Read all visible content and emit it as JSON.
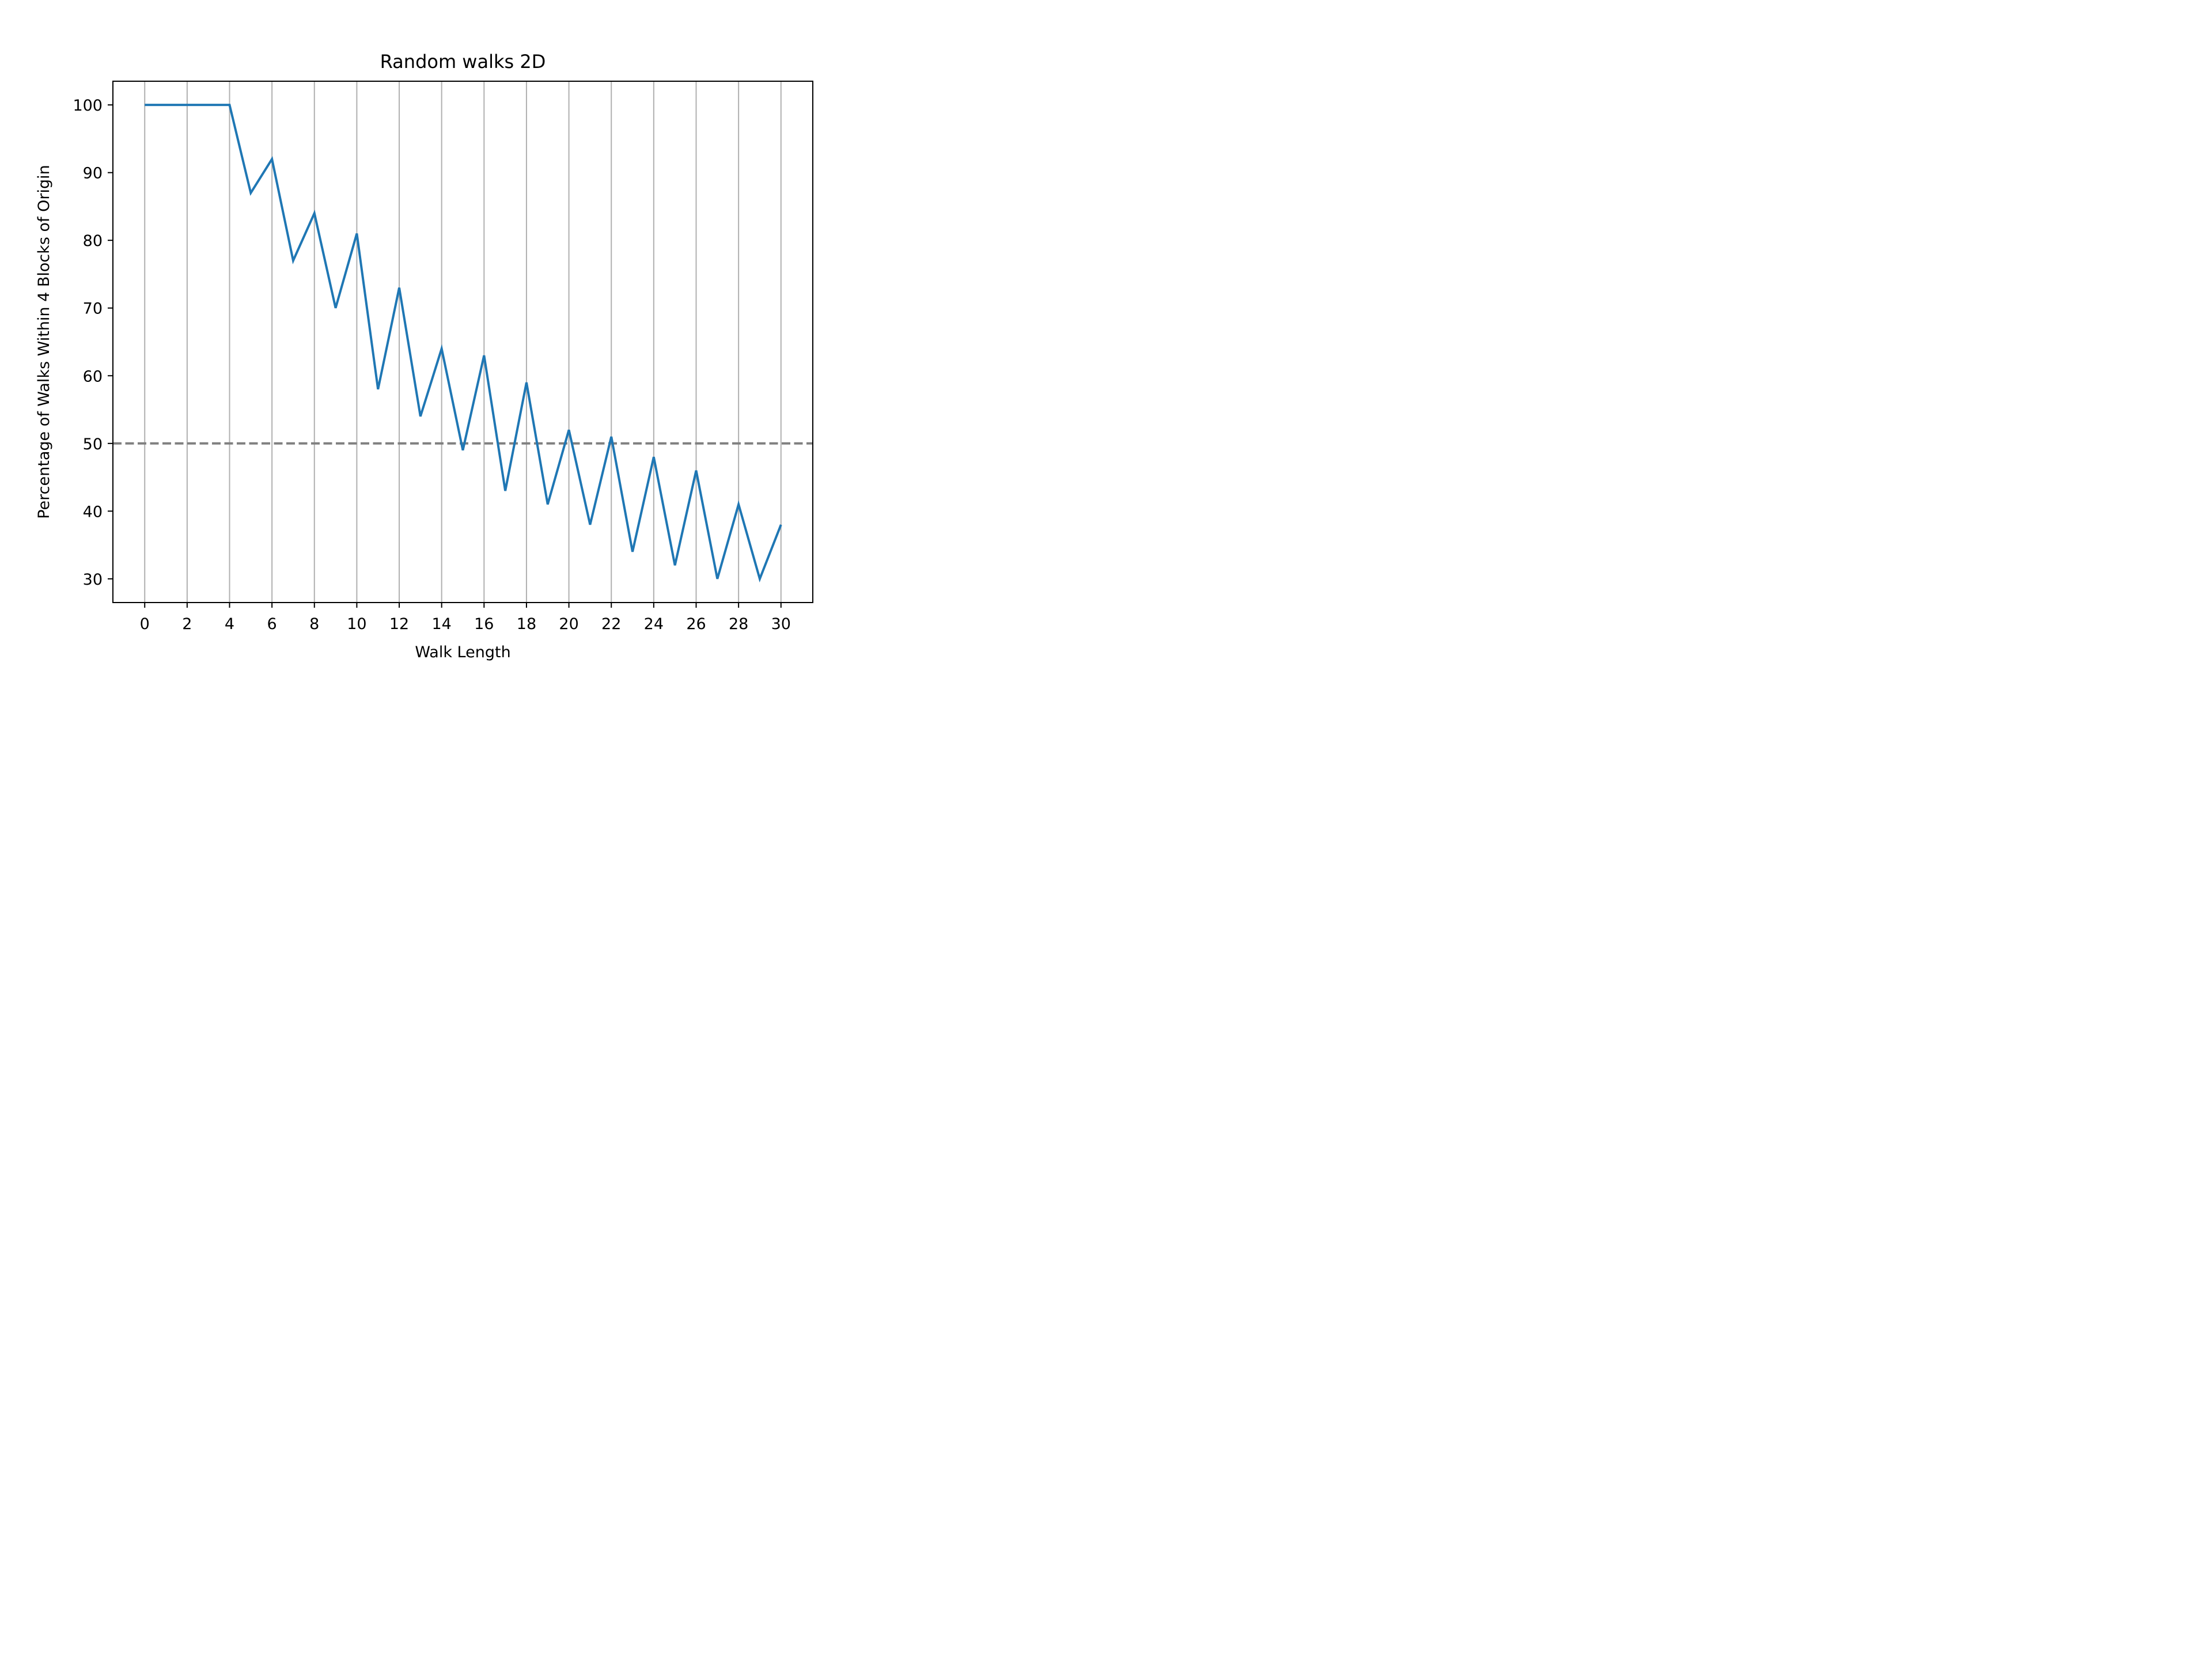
{
  "chart_data": {
    "type": "line",
    "title": "Random walks 2D",
    "xlabel": "Walk Length",
    "ylabel": "Percentage of Walks Within 4 Blocks of Origin",
    "xlim": [
      -1.5,
      31.5
    ],
    "ylim": [
      26.5,
      103.5
    ],
    "xticks": [
      0,
      2,
      4,
      6,
      8,
      10,
      12,
      14,
      16,
      18,
      20,
      22,
      24,
      26,
      28,
      30
    ],
    "yticks": [
      30,
      40,
      50,
      60,
      70,
      80,
      90,
      100
    ],
    "grid": "x",
    "legend": "none",
    "reference_line": {
      "y": 50,
      "style": "dashed",
      "color": "#808080"
    },
    "series": [
      {
        "color": "#1f77b4",
        "x": [
          0,
          1,
          2,
          3,
          4,
          5,
          6,
          7,
          8,
          9,
          10,
          11,
          12,
          13,
          14,
          15,
          16,
          17,
          18,
          19,
          20,
          21,
          22,
          23,
          24,
          25,
          26,
          27,
          28,
          29,
          30
        ],
        "y": [
          100,
          100,
          100,
          100,
          100,
          87,
          92,
          77,
          84,
          70,
          81,
          58,
          73,
          54,
          64,
          49,
          63,
          43,
          59,
          41,
          52,
          38,
          51,
          34,
          48,
          32,
          46,
          30,
          41,
          30,
          38
        ]
      }
    ]
  }
}
